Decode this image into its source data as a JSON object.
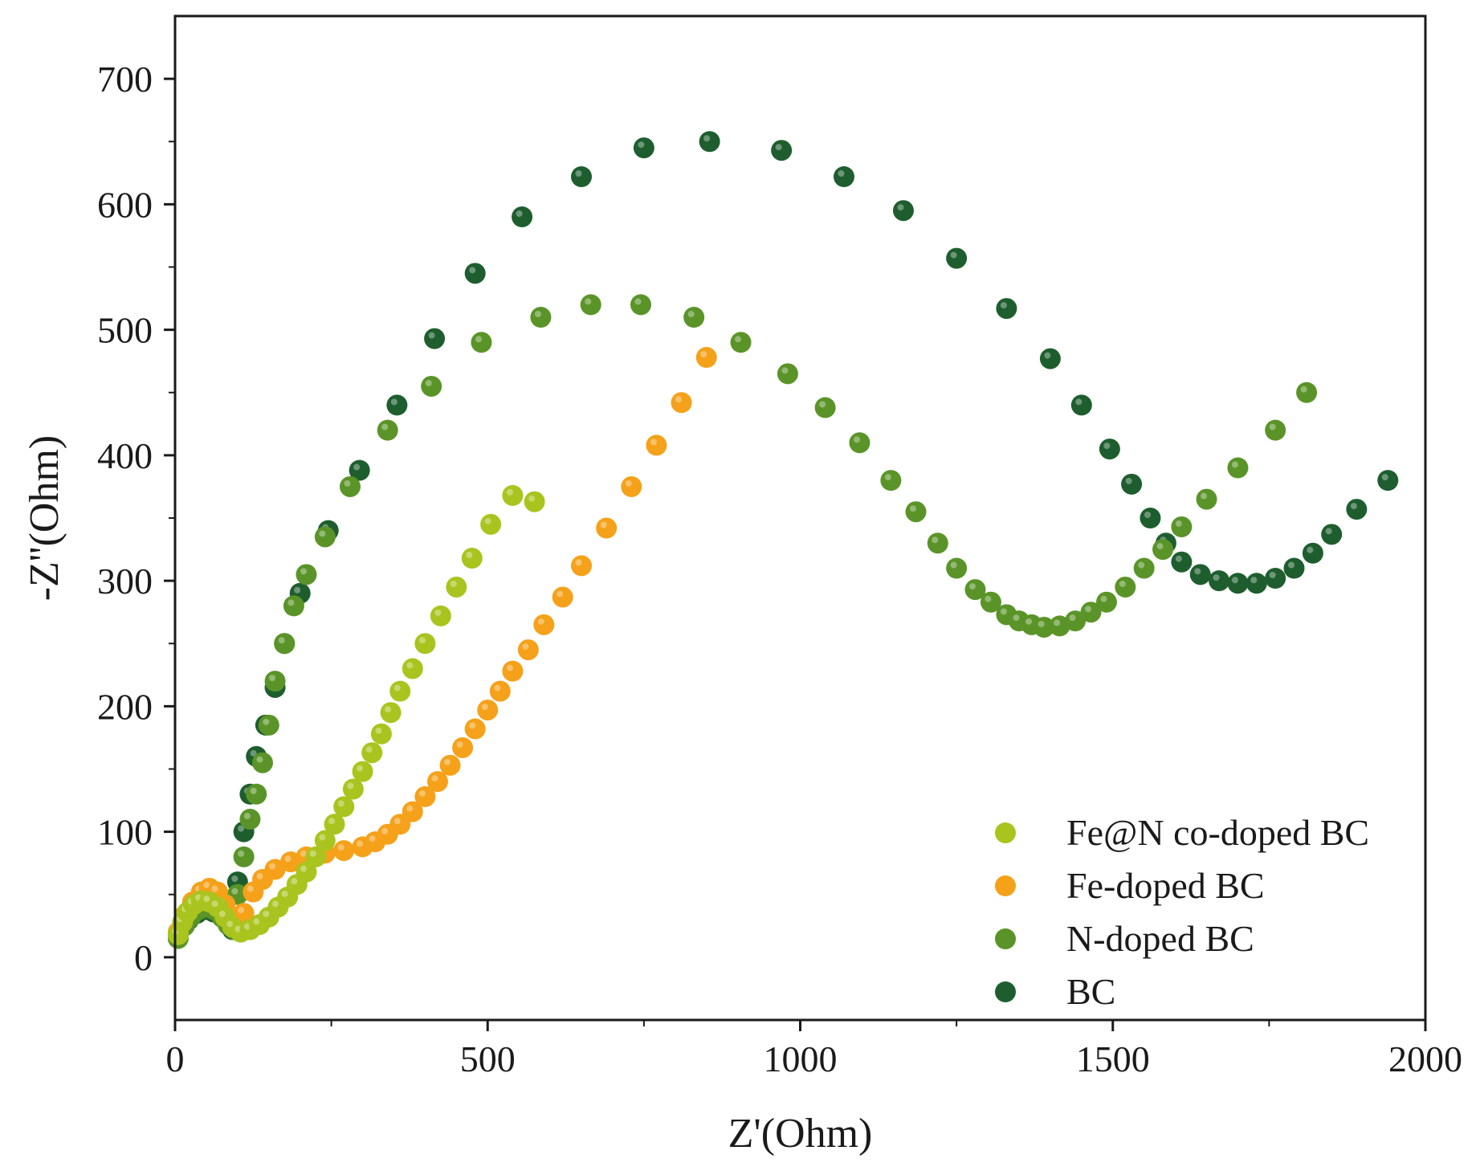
{
  "chart_data": {
    "type": "scatter",
    "xlabel": "Z'(Ohm)",
    "ylabel": "-Z''(Ohm)",
    "xlim": [
      0,
      2000
    ],
    "ylim": [
      -50,
      750
    ],
    "x_ticks": [
      0,
      500,
      1000,
      1500,
      2000
    ],
    "y_ticks": [
      0,
      100,
      200,
      300,
      400,
      500,
      600,
      700
    ],
    "x_tick_labels": [
      "0",
      "500",
      "1000",
      "1500",
      "2000"
    ],
    "y_tick_labels": [
      "0",
      "100",
      "200",
      "300",
      "400",
      "500",
      "600",
      "700"
    ],
    "grid": false,
    "legend_position": "bottom-right",
    "colors": {
      "Fe@N co-doped BC": "#a9c41e",
      "Fe-doped BC": "#f5a11a",
      "N-doped BC": "#5a9428",
      "BC": "#1e5e2e"
    },
    "series": [
      {
        "name": "Fe@N co-doped BC",
        "color": "#a9c41e",
        "points": [
          [
            5,
            18
          ],
          [
            12,
            28
          ],
          [
            20,
            36
          ],
          [
            30,
            42
          ],
          [
            42,
            45
          ],
          [
            55,
            44
          ],
          [
            68,
            40
          ],
          [
            80,
            32
          ],
          [
            92,
            24
          ],
          [
            105,
            20
          ],
          [
            120,
            22
          ],
          [
            135,
            26
          ],
          [
            150,
            32
          ],
          [
            165,
            40
          ],
          [
            180,
            48
          ],
          [
            195,
            58
          ],
          [
            210,
            68
          ],
          [
            225,
            80
          ],
          [
            240,
            93
          ],
          [
            255,
            106
          ],
          [
            270,
            120
          ],
          [
            285,
            134
          ],
          [
            300,
            148
          ],
          [
            315,
            163
          ],
          [
            330,
            178
          ],
          [
            345,
            195
          ],
          [
            360,
            212
          ],
          [
            380,
            230
          ],
          [
            400,
            250
          ],
          [
            425,
            272
          ],
          [
            450,
            295
          ],
          [
            475,
            318
          ],
          [
            505,
            345
          ],
          [
            540,
            368
          ],
          [
            575,
            363
          ]
        ]
      },
      {
        "name": "Fe-doped BC",
        "color": "#f5a11a",
        "points": [
          [
            5,
            20
          ],
          [
            15,
            33
          ],
          [
            28,
            44
          ],
          [
            42,
            52
          ],
          [
            55,
            55
          ],
          [
            68,
            52
          ],
          [
            80,
            42
          ],
          [
            92,
            30
          ],
          [
            100,
            24
          ],
          [
            110,
            35
          ],
          [
            125,
            52
          ],
          [
            140,
            62
          ],
          [
            160,
            70
          ],
          [
            185,
            76
          ],
          [
            210,
            80
          ],
          [
            240,
            83
          ],
          [
            270,
            85
          ],
          [
            300,
            88
          ],
          [
            320,
            92
          ],
          [
            340,
            98
          ],
          [
            360,
            106
          ],
          [
            380,
            116
          ],
          [
            400,
            128
          ],
          [
            420,
            140
          ],
          [
            440,
            153
          ],
          [
            460,
            167
          ],
          [
            480,
            182
          ],
          [
            500,
            197
          ],
          [
            520,
            212
          ],
          [
            540,
            228
          ],
          [
            565,
            245
          ],
          [
            590,
            265
          ],
          [
            620,
            287
          ],
          [
            650,
            312
          ],
          [
            690,
            342
          ],
          [
            730,
            375
          ],
          [
            770,
            408
          ],
          [
            810,
            442
          ],
          [
            850,
            478
          ]
        ]
      },
      {
        "name": "N-doped BC",
        "color": "#5a9428",
        "points": [
          [
            5,
            15
          ],
          [
            15,
            25
          ],
          [
            25,
            32
          ],
          [
            38,
            38
          ],
          [
            50,
            40
          ],
          [
            62,
            38
          ],
          [
            75,
            32
          ],
          [
            85,
            26
          ],
          [
            95,
            22
          ],
          [
            100,
            50
          ],
          [
            110,
            80
          ],
          [
            120,
            110
          ],
          [
            130,
            130
          ],
          [
            140,
            155
          ],
          [
            150,
            185
          ],
          [
            160,
            220
          ],
          [
            175,
            250
          ],
          [
            190,
            280
          ],
          [
            210,
            305
          ],
          [
            240,
            335
          ],
          [
            280,
            375
          ],
          [
            340,
            420
          ],
          [
            410,
            455
          ],
          [
            490,
            490
          ],
          [
            585,
            510
          ],
          [
            665,
            520
          ],
          [
            745,
            520
          ],
          [
            830,
            510
          ],
          [
            905,
            490
          ],
          [
            980,
            465
          ],
          [
            1040,
            438
          ],
          [
            1095,
            410
          ],
          [
            1145,
            380
          ],
          [
            1185,
            355
          ],
          [
            1220,
            330
          ],
          [
            1250,
            310
          ],
          [
            1280,
            293
          ],
          [
            1305,
            283
          ],
          [
            1330,
            273
          ],
          [
            1350,
            268
          ],
          [
            1370,
            265
          ],
          [
            1390,
            263
          ],
          [
            1415,
            264
          ],
          [
            1440,
            268
          ],
          [
            1465,
            275
          ],
          [
            1490,
            283
          ],
          [
            1520,
            295
          ],
          [
            1550,
            310
          ],
          [
            1580,
            325
          ],
          [
            1610,
            343
          ],
          [
            1650,
            365
          ],
          [
            1700,
            390
          ],
          [
            1760,
            420
          ],
          [
            1810,
            450
          ]
        ]
      },
      {
        "name": "BC",
        "color": "#1e5e2e",
        "points": [
          [
            5,
            18
          ],
          [
            12,
            25
          ],
          [
            22,
            30
          ],
          [
            35,
            35
          ],
          [
            48,
            38
          ],
          [
            62,
            36
          ],
          [
            75,
            32
          ],
          [
            85,
            26
          ],
          [
            92,
            22
          ],
          [
            100,
            60
          ],
          [
            110,
            100
          ],
          [
            120,
            130
          ],
          [
            130,
            160
          ],
          [
            145,
            185
          ],
          [
            160,
            215
          ],
          [
            175,
            250
          ],
          [
            200,
            290
          ],
          [
            245,
            340
          ],
          [
            295,
            388
          ],
          [
            355,
            440
          ],
          [
            415,
            493
          ],
          [
            480,
            545
          ],
          [
            555,
            590
          ],
          [
            650,
            622
          ],
          [
            750,
            645
          ],
          [
            855,
            650
          ],
          [
            970,
            643
          ],
          [
            1070,
            622
          ],
          [
            1165,
            595
          ],
          [
            1250,
            557
          ],
          [
            1330,
            517
          ],
          [
            1400,
            477
          ],
          [
            1450,
            440
          ],
          [
            1495,
            405
          ],
          [
            1530,
            377
          ],
          [
            1560,
            350
          ],
          [
            1585,
            330
          ],
          [
            1610,
            315
          ],
          [
            1640,
            305
          ],
          [
            1670,
            300
          ],
          [
            1700,
            298
          ],
          [
            1730,
            298
          ],
          [
            1760,
            302
          ],
          [
            1790,
            310
          ],
          [
            1820,
            322
          ],
          [
            1850,
            337
          ],
          [
            1890,
            357
          ],
          [
            1940,
            380
          ]
        ]
      }
    ]
  }
}
